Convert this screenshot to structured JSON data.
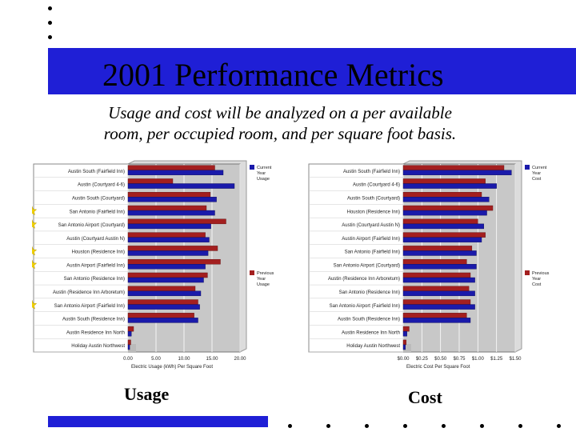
{
  "slide": {
    "title": "2001 Performance Metrics",
    "subtitle_line1": "Usage and cost will be analyzed on a per available",
    "subtitle_line2": "room, per occupied room, and per square foot basis.",
    "caption_left": "Usage",
    "caption_right": "Cost"
  },
  "colors": {
    "band": "#1f1fd6",
    "current": "#1a1aaa",
    "previous": "#a31f1f",
    "plot_bg": "#c8c8c8",
    "star": "#f0d000"
  },
  "chart_data": [
    {
      "type": "bar",
      "orientation": "horizontal",
      "categories": [
        "Austin South (Fairfield Inn)",
        "Austin (Courtyard 4-6)",
        "Austin South (Courtyard)",
        "San Antonio (Fairfield Inn)",
        "San Antonio Airport (Courtyard)",
        "Austin (Courtyard Austin N)",
        "Houston (Residence Inn)",
        "Austin Airport (Fairfield Inn)",
        "San Antonio (Residence Inn)",
        "Austin (Residence Inn Arboretum)",
        "San Antonio Airport (Fairfield Inn)",
        "Austin South (Residence Inn)",
        "Austin Residence Inn North",
        "Holiday Austin Northwest"
      ],
      "series": [
        {
          "name": "Current Year Usage",
          "values": [
            17.0,
            19.0,
            15.8,
            15.5,
            14.8,
            14.5,
            14.3,
            13.8,
            13.5,
            13.0,
            12.8,
            12.5,
            0.6,
            0.3
          ]
        },
        {
          "name": "Previous Year Usage",
          "values": [
            15.5,
            8.0,
            14.7,
            14.0,
            17.5,
            13.8,
            16.0,
            16.5,
            14.2,
            12.0,
            12.5,
            11.8,
            1.0,
            0.5
          ]
        }
      ],
      "xticks": [
        "0.00",
        "5.00",
        "10.00",
        "15.00",
        "20.00"
      ],
      "xlim": [
        0,
        20
      ],
      "xlabel": "Electric Usage (kWh) Per Square Foot",
      "legend_current": [
        "Current",
        "Year",
        "Usage"
      ],
      "legend_previous": [
        "Previous",
        "Year",
        "Usage"
      ],
      "starred_rows": [
        3,
        4,
        6,
        7,
        10
      ]
    },
    {
      "type": "bar",
      "orientation": "horizontal",
      "categories": [
        "Austin South (Fairfield Inn)",
        "Austin (Courtyard 4-6)",
        "Austin South (Courtyard)",
        "Houston (Residence Inn)",
        "Austin (Courtyard Austin N)",
        "Austin Airport (Fairfield Inn)",
        "San Antonio (Fairfield Inn)",
        "San Antonio Airport (Courtyard)",
        "Austin (Residence Inn Arboretum)",
        "San Antonio (Residence Inn)",
        "San Antonio Airport (Fairfield Inn)",
        "Austin South (Residence Inn)",
        "Austin Residence Inn North",
        "Holiday Austin Northwest"
      ],
      "series": [
        {
          "name": "Current Year Cost",
          "values": [
            1.45,
            1.25,
            1.15,
            1.12,
            1.08,
            1.05,
            0.98,
            0.98,
            0.96,
            0.96,
            0.96,
            0.9,
            0.05,
            0.03
          ]
        },
        {
          "name": "Previous Year Cost",
          "values": [
            1.35,
            1.1,
            1.05,
            1.2,
            1.0,
            1.1,
            0.92,
            0.85,
            0.9,
            0.88,
            0.9,
            0.85,
            0.08,
            0.04
          ]
        }
      ],
      "xticks": [
        "$0.00",
        "$0.25",
        "$0.50",
        "$0.75",
        "$1.00",
        "$1.25",
        "$1.50"
      ],
      "xlim": [
        0,
        1.5
      ],
      "xlabel": "Electric Cost Per Square Foot",
      "legend_current": [
        "Current",
        "Year",
        "Cost"
      ],
      "legend_previous": [
        "Previous",
        "Year",
        "Cost"
      ],
      "starred_rows": []
    }
  ]
}
